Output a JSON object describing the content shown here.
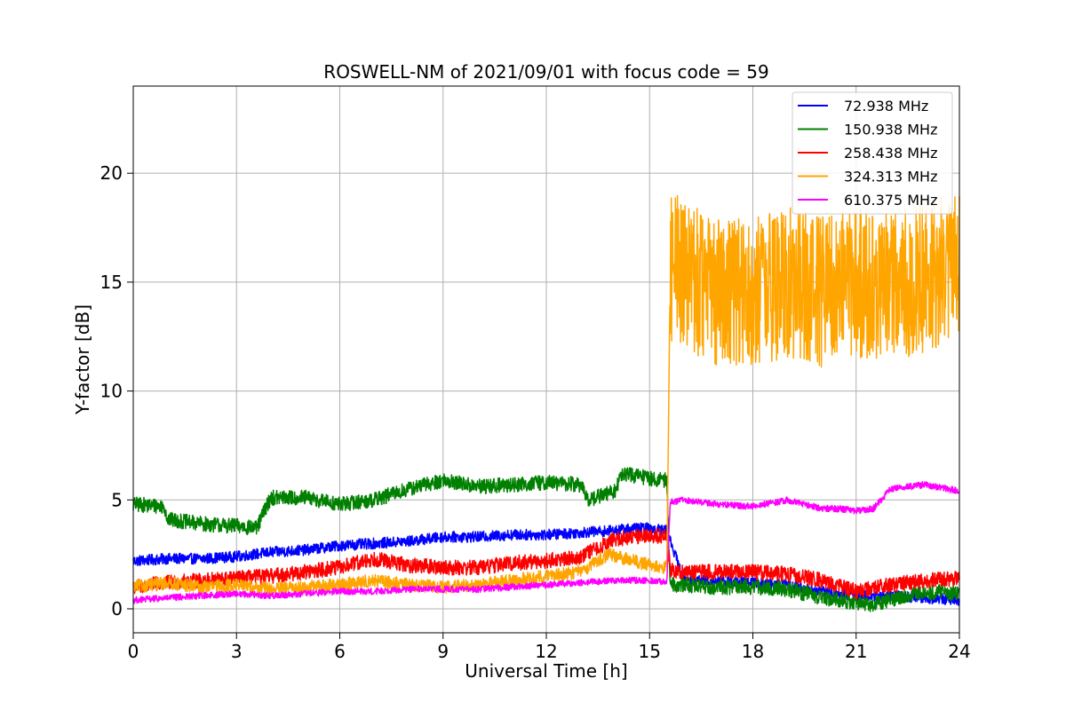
{
  "chart_data": {
    "type": "line",
    "title": "ROSWELL-NM of 2021/09/01 with focus code = 59",
    "xlabel": "Universal Time [h]",
    "ylabel": "Y-factor [dB]",
    "xlim": [
      0,
      24
    ],
    "ylim": [
      -1.1,
      24
    ],
    "xticks": [
      0,
      3,
      6,
      9,
      12,
      15,
      18,
      21,
      24
    ],
    "yticks": [
      0,
      5,
      10,
      15,
      20
    ],
    "grid": true,
    "legend_position": "top-right",
    "series": [
      {
        "name": "72.938 MHz",
        "color": "#0000ff",
        "noise": 0.25,
        "x": [
          0,
          1,
          2,
          3,
          4,
          5,
          6,
          7,
          8,
          9,
          10,
          11,
          12,
          13,
          14,
          14.5,
          15,
          15.5,
          16,
          17,
          18,
          19,
          20,
          21,
          22,
          23,
          24
        ],
        "y": [
          2.2,
          2.3,
          2.3,
          2.4,
          2.6,
          2.7,
          2.9,
          3.0,
          3.1,
          3.3,
          3.3,
          3.4,
          3.4,
          3.5,
          3.6,
          3.7,
          3.7,
          3.6,
          1.3,
          1.3,
          1.2,
          1.1,
          0.8,
          0.6,
          0.6,
          0.5,
          0.4
        ]
      },
      {
        "name": "150.938 MHz",
        "color": "#008000",
        "noise": 0.35,
        "x": [
          0,
          0.9,
          1.0,
          2,
          3,
          3.6,
          3.8,
          4,
          5,
          6,
          7,
          8,
          9,
          10,
          11,
          12,
          13,
          13.2,
          14,
          14.2,
          15,
          15.5,
          15.6,
          16,
          17,
          18,
          19,
          20,
          21,
          21.5,
          22,
          23,
          24
        ],
        "y": [
          4.8,
          4.7,
          4.1,
          3.9,
          3.8,
          3.7,
          4.5,
          5.1,
          5.1,
          4.8,
          5.0,
          5.5,
          5.9,
          5.6,
          5.7,
          5.8,
          5.7,
          5.0,
          5.4,
          6.2,
          6.0,
          5.9,
          1.1,
          1.1,
          1.0,
          1.0,
          0.9,
          0.5,
          0.3,
          0.2,
          0.4,
          0.8,
          0.7
        ]
      },
      {
        "name": "258.438 MHz",
        "color": "#ff0000",
        "noise": 0.35,
        "x": [
          0,
          1,
          2,
          3,
          4,
          5,
          6,
          7,
          8,
          9,
          10,
          11,
          12,
          13,
          14,
          15,
          15.5,
          15.6,
          16,
          17,
          18,
          19,
          20,
          21,
          22,
          23,
          24
        ],
        "y": [
          1.0,
          1.2,
          1.3,
          1.4,
          1.5,
          1.7,
          1.9,
          2.3,
          2.0,
          1.9,
          1.9,
          2.1,
          2.2,
          2.4,
          3.2,
          3.4,
          3.3,
          1.8,
          1.7,
          1.7,
          1.7,
          1.6,
          1.3,
          0.8,
          1.1,
          1.3,
          1.4
        ]
      },
      {
        "name": "324.313 MHz",
        "color": "#ffa500",
        "noise": 0.3,
        "bigNoiseFrom": 15.6,
        "bigNoise": 3.5,
        "x": [
          0,
          1,
          2,
          3,
          4,
          5,
          6,
          7,
          8,
          9,
          10,
          11,
          12,
          13,
          13.8,
          14.3,
          15,
          15.5,
          15.6,
          16,
          17,
          18,
          19,
          20,
          21,
          22,
          23,
          24
        ],
        "y": [
          1.0,
          1.2,
          1.0,
          1.1,
          0.9,
          1.0,
          1.1,
          1.3,
          1.1,
          1.0,
          1.1,
          1.3,
          1.5,
          1.7,
          2.5,
          2.3,
          2.0,
          1.9,
          15.5,
          15.5,
          14.5,
          14.5,
          15.0,
          14.5,
          15.0,
          14.8,
          15.2,
          16.0
        ]
      },
      {
        "name": "610.375 MHz",
        "color": "#ff00ff",
        "noise": 0.15,
        "x": [
          0,
          1,
          2,
          3,
          4,
          5,
          6,
          7,
          8,
          9,
          10,
          11,
          12,
          13,
          14,
          15,
          15.5,
          15.6,
          16,
          17,
          18,
          19,
          20,
          20.4,
          20.5,
          21,
          21.5,
          22,
          23,
          24
        ],
        "y": [
          0.4,
          0.5,
          0.6,
          0.7,
          0.6,
          0.7,
          0.8,
          0.8,
          0.9,
          0.9,
          0.9,
          1.0,
          1.1,
          1.2,
          1.3,
          1.3,
          1.2,
          4.9,
          5.0,
          4.8,
          4.7,
          5.0,
          4.6,
          4.6,
          4.6,
          4.5,
          4.6,
          5.5,
          5.7,
          5.4
        ]
      }
    ]
  }
}
